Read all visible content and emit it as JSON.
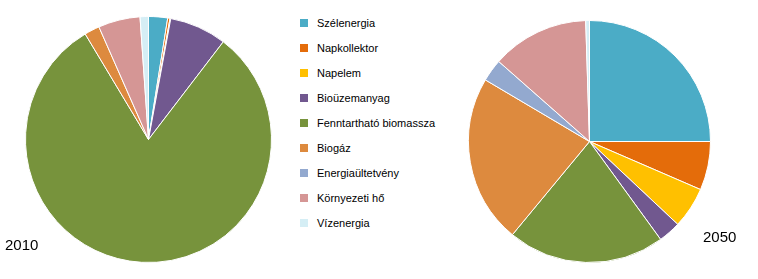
{
  "chart_data": [
    {
      "type": "pie",
      "title": "2010",
      "legend": "right",
      "categories": [
        "Szélenergia",
        "Napkollektor",
        "Napelem",
        "Bioüzemanyag",
        "Fenntartható biomassza",
        "Biogáz",
        "Energiaültetvény",
        "Környezeti hő",
        "Vízenergia"
      ],
      "values": [
        2.5,
        0.3,
        0.1,
        7.5,
        81,
        2,
        0,
        5.5,
        1.1
      ],
      "colors": [
        "#4bacc6",
        "#e46c0a",
        "#ffc000",
        "#71588f",
        "#77933c",
        "#dd8a3e",
        "#93a9cf",
        "#d59695",
        "#d5eef5"
      ]
    },
    {
      "type": "pie",
      "title": "2050",
      "categories": [
        "Szélenergia",
        "Napkollektor",
        "Napelem",
        "Bioüzemanyag",
        "Fenntartható biomassza",
        "Biogáz",
        "Energiaültetvény",
        "Környezeti hő",
        "Vízenergia"
      ],
      "values": [
        25,
        6.5,
        5.5,
        3,
        21,
        22.5,
        3,
        13,
        0.5
      ],
      "colors": [
        "#4bacc6",
        "#e46c0a",
        "#ffc000",
        "#71588f",
        "#77933c",
        "#dd8a3e",
        "#93a9cf",
        "#d59695",
        "#d5eef5"
      ]
    }
  ]
}
